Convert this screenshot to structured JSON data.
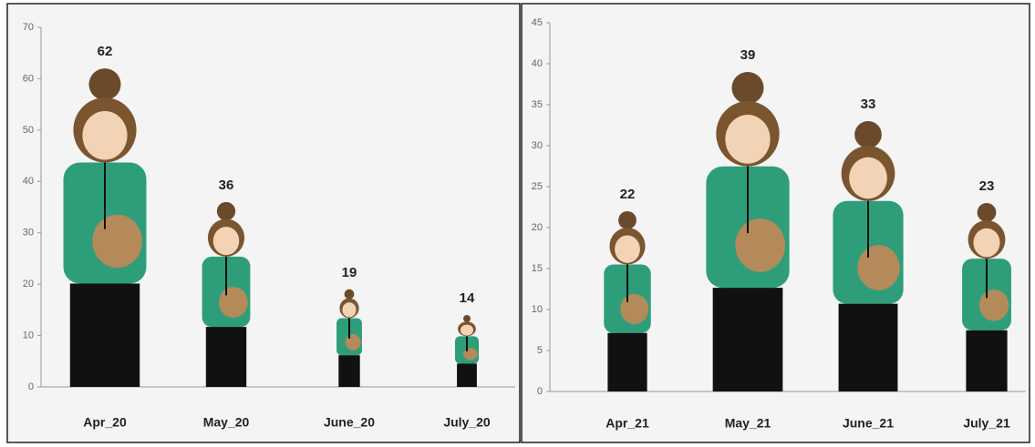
{
  "chart_data": [
    {
      "type": "bar",
      "categories": [
        "Apr_20",
        "May_20",
        "June_20",
        "July_20"
      ],
      "values": [
        62,
        36,
        19,
        14
      ],
      "ylim": [
        0,
        70
      ],
      "yticks": [
        0,
        10,
        20,
        30,
        40,
        50,
        60,
        70
      ],
      "color": "#2e9e7a"
    },
    {
      "type": "bar",
      "categories": [
        "Apr_21",
        "May_21",
        "June_21",
        "July_21"
      ],
      "values": [
        22,
        39,
        33,
        23
      ],
      "ylim": [
        0,
        45
      ],
      "yticks": [
        0,
        5,
        10,
        15,
        20,
        25,
        30,
        35,
        40,
        45
      ],
      "color": "#2e9e7a"
    }
  ]
}
